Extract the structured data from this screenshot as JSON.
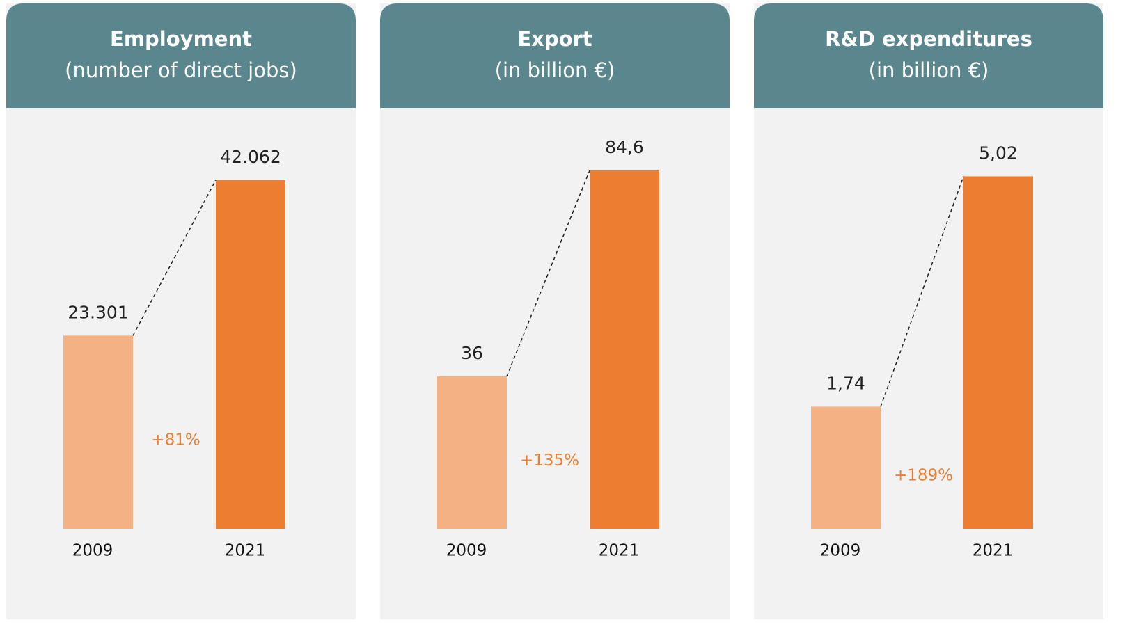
{
  "chart_data": [
    {
      "type": "bar",
      "title": "Employment",
      "subtitle": "(number of direct jobs)",
      "categories": [
        "2009",
        "2021"
      ],
      "values": [
        23301,
        42062
      ],
      "value_labels": [
        "23.301",
        "42.062"
      ],
      "colors": [
        "#f4b183",
        "#ed7d31"
      ],
      "annotation": "+81%",
      "ylim": [
        0,
        47000
      ]
    },
    {
      "type": "bar",
      "title": "Export",
      "subtitle": "(in billion €)",
      "categories": [
        "2009",
        "2021"
      ],
      "values": [
        36,
        84.6
      ],
      "value_labels": [
        "36",
        "84,6"
      ],
      "colors": [
        "#f4b183",
        "#ed7d31"
      ],
      "annotation": "+135%",
      "ylim": [
        0,
        92
      ]
    },
    {
      "type": "bar",
      "title": "R&D expenditures",
      "subtitle": "(in billion €)",
      "categories": [
        "2009",
        "2021"
      ],
      "values": [
        1.74,
        5.02
      ],
      "value_labels": [
        "1,74",
        "5,02"
      ],
      "colors": [
        "#f4b183",
        "#ed7d31"
      ],
      "annotation": "+189%",
      "ylim": [
        0,
        5.55
      ]
    }
  ]
}
